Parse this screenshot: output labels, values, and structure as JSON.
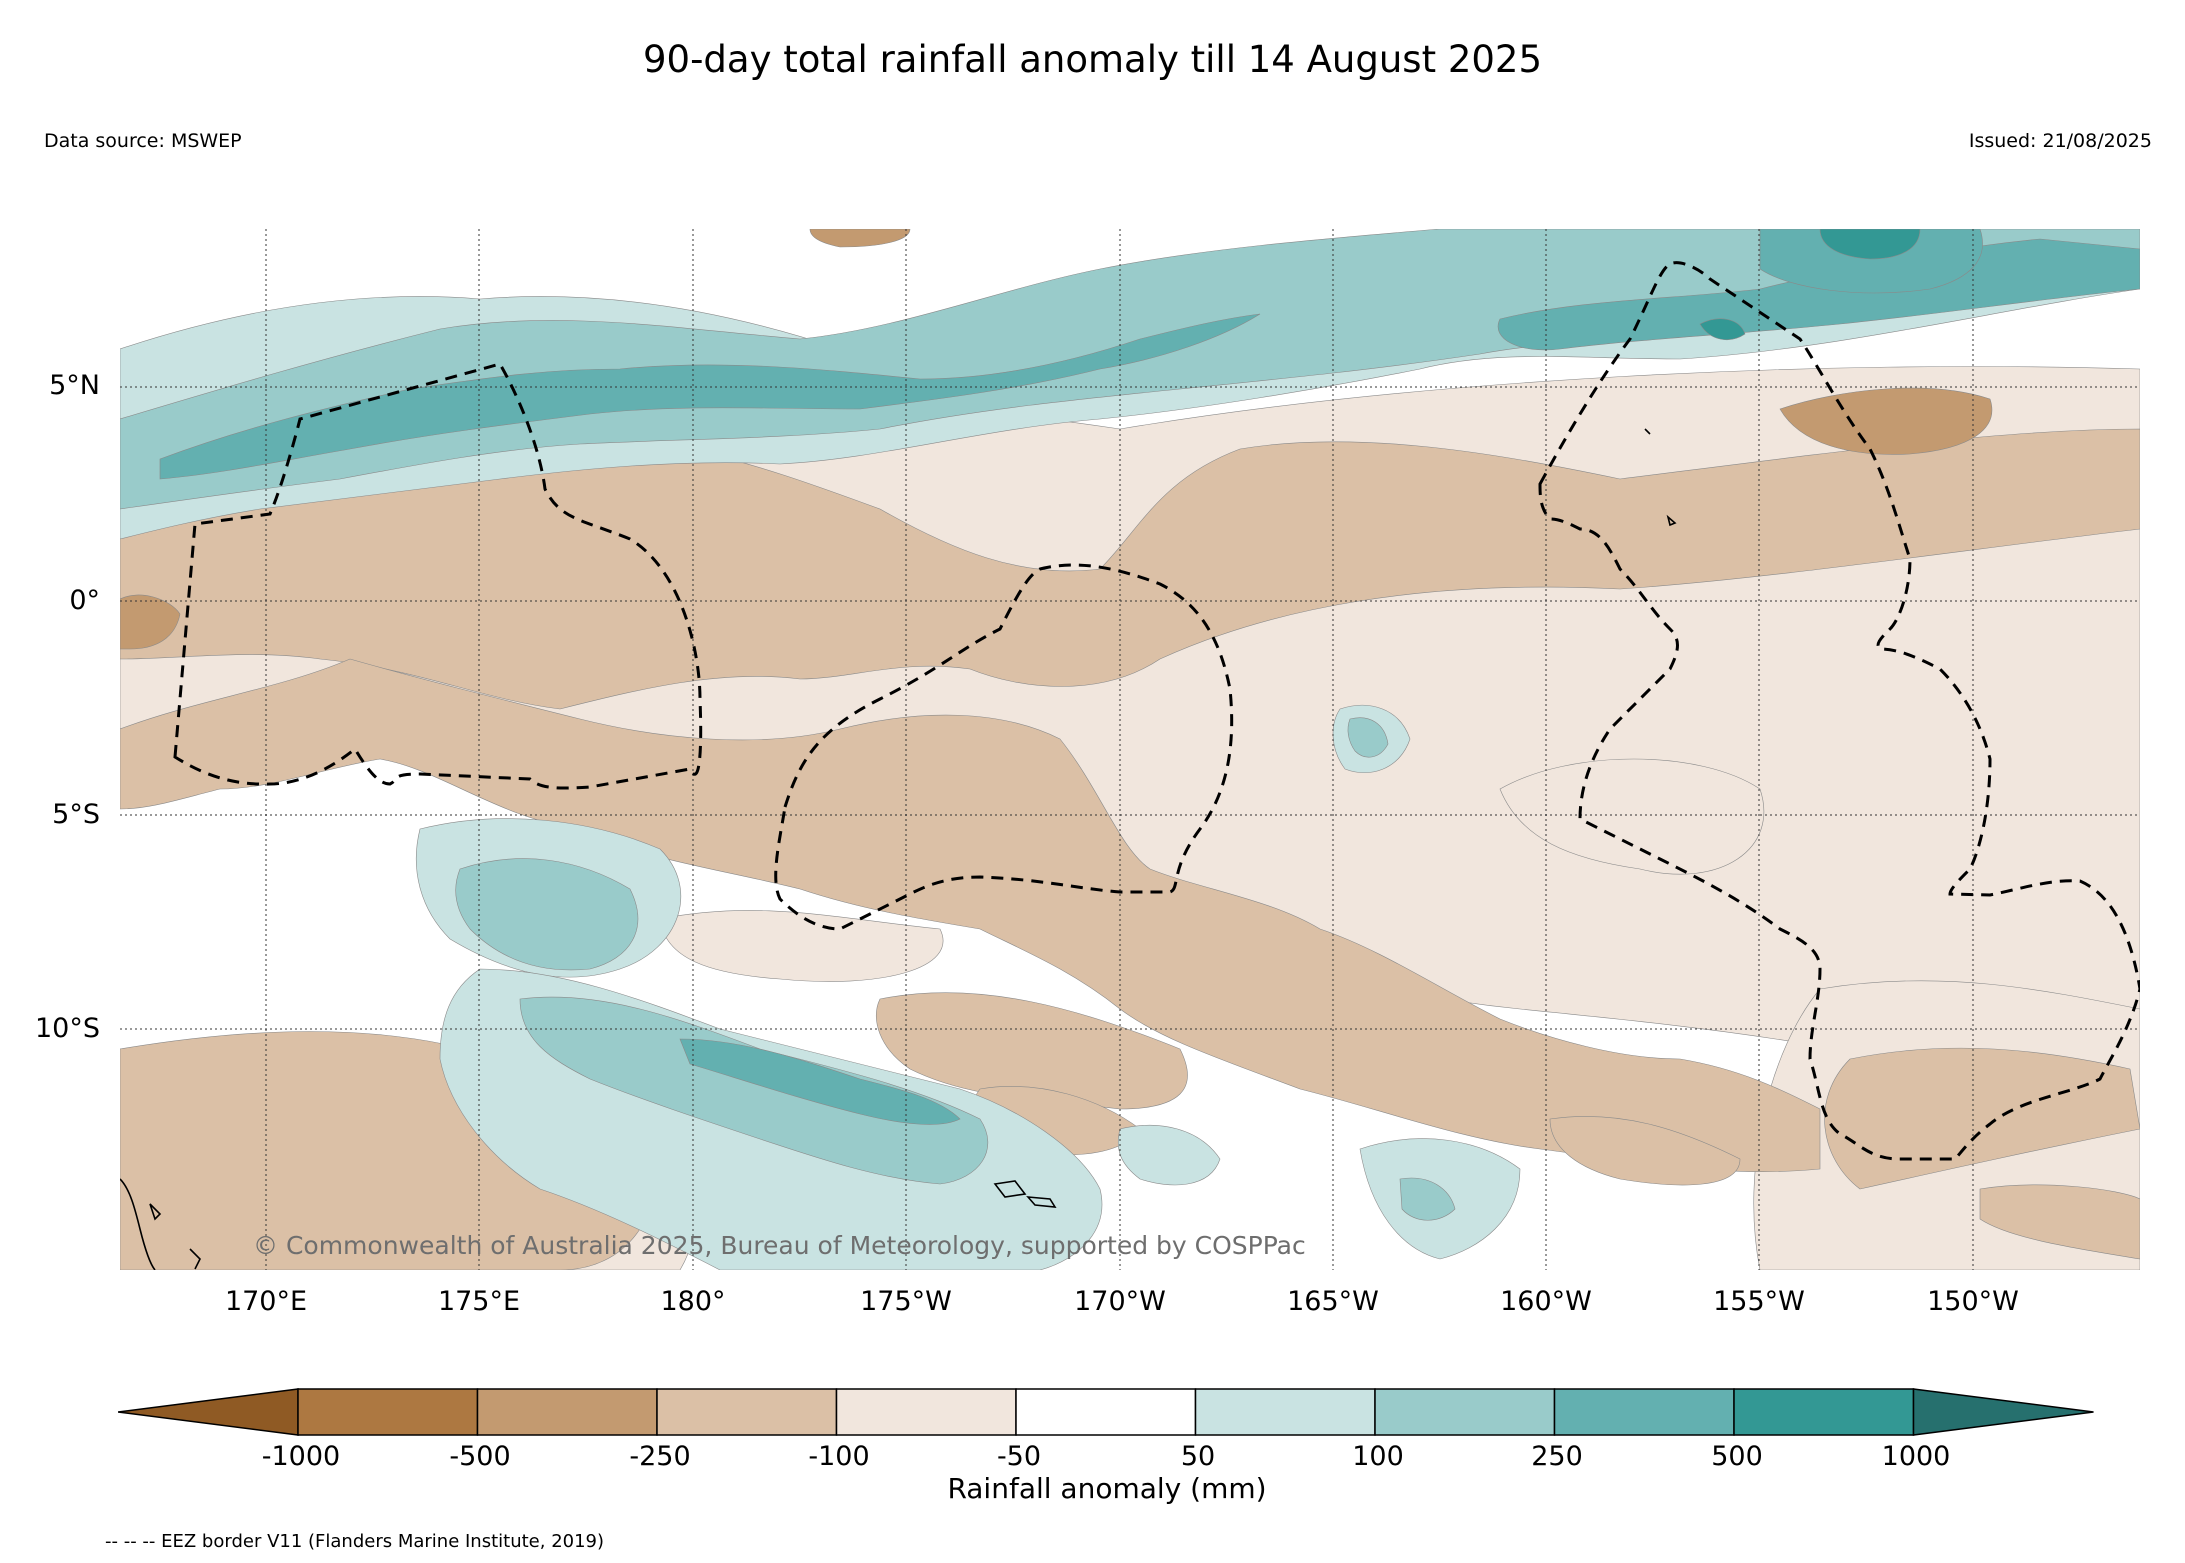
{
  "title": "90-day total rainfall anomaly till 14 August 2025",
  "data_source": "Data source: MSWEP",
  "issued": "Issued: 21/08/2025",
  "copyright": "© Commonwealth of Australia 2025, Bureau of Meteorology, supported by COSPPac",
  "map": {
    "lon_range": [
      166.5,
      -146.2
    ],
    "lat_range": [
      -15.6,
      8.8
    ],
    "lat_labels": [
      "5°N",
      "0°",
      "5°S",
      "10°S"
    ],
    "lon_labels": [
      "170°E",
      "175°E",
      "180°",
      "175°W",
      "170°W",
      "165°W",
      "160°W",
      "155°W",
      "150°W"
    ],
    "gridlines": "dotted"
  },
  "colorbar": {
    "title": "Rainfall anomaly (mm)",
    "tick_labels": [
      "-1000",
      "-500",
      "-250",
      "-100",
      "-50",
      "50",
      "100",
      "250",
      "500",
      "1000"
    ],
    "colors": [
      "#8f5a24",
      "#ad7841",
      "#c39a70",
      "#dbc0a6",
      "#f1e6dd",
      "#ffffff",
      "#c9e3e2",
      "#99cbca",
      "#63b0b0",
      "#339894",
      "#26706e"
    ],
    "extend": "both"
  },
  "legend_note": "-- -- -- EEZ border V11 (Flanders Marine Institute, 2019)"
}
